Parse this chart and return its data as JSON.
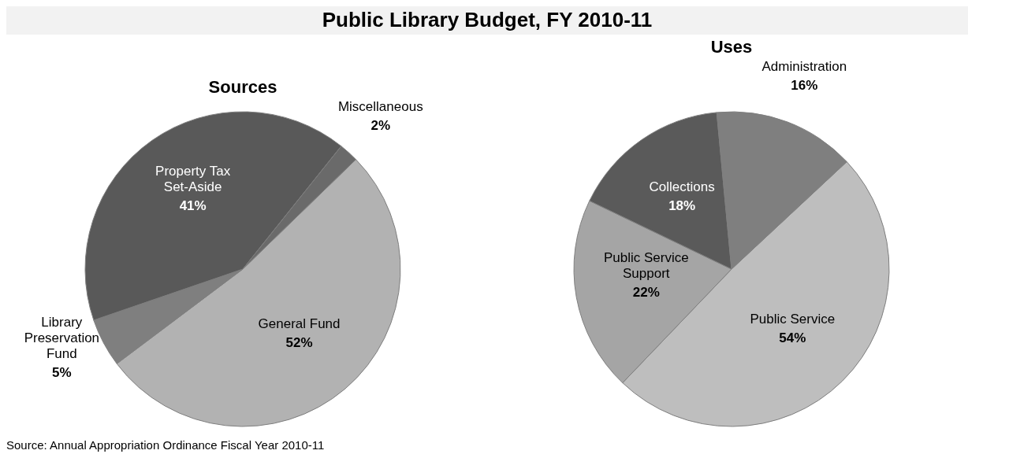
{
  "chart_data": [
    {
      "type": "pie",
      "title": "Sources",
      "categories": [
        "General Fund",
        "Library\nPreservation\nFund",
        "Property Tax\nSet-Aside",
        "Miscellaneous"
      ],
      "values": [
        52,
        5,
        41,
        2
      ],
      "value_labels": [
        "52%",
        "5%",
        "41%",
        "2%"
      ],
      "colors": [
        "#b2b2b2",
        "#7f7f7f",
        "#595959",
        "#6a6a6a"
      ],
      "annotations": [
        "Public Library Budget, FY 2010-11",
        "Source: Annual Appropriation Ordinance Fiscal Year 2010-11"
      ]
    },
    {
      "type": "pie",
      "title": "Uses",
      "categories": [
        "Public Service",
        "Public Service\nSupport",
        "Collections",
        "Administration"
      ],
      "values": [
        54,
        22,
        18,
        16
      ],
      "value_labels": [
        "54%",
        "22%",
        "18%",
        "16%"
      ],
      "colors": [
        "#bebebe",
        "#a5a5a5",
        "#5a5a5a",
        "#7f7f7f"
      ]
    }
  ]
}
